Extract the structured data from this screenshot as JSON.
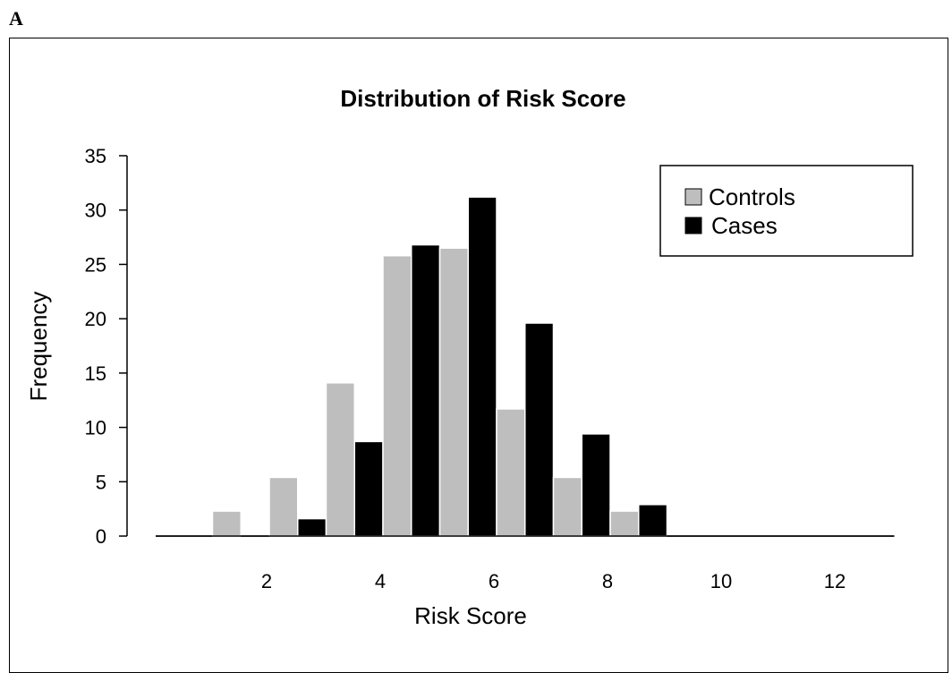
{
  "panel_label": "A",
  "chart_data": {
    "type": "bar",
    "title": "Distribution of Risk Score",
    "xlabel": "Risk Score",
    "ylabel": "Frequency",
    "categories": [
      1,
      2,
      3,
      4,
      5,
      6,
      7,
      8,
      9,
      10,
      11,
      12,
      13
    ],
    "x_ticks": [
      2,
      4,
      6,
      8,
      10,
      12
    ],
    "y_ticks": [
      0,
      5,
      10,
      15,
      20,
      25,
      30,
      35
    ],
    "ylim": [
      0,
      35
    ],
    "series": [
      {
        "name": "Controls",
        "color": "#bebebe",
        "values": [
          0,
          2.3,
          5.4,
          14.1,
          25.8,
          26.5,
          11.7,
          5.4,
          2.3,
          0,
          0,
          0,
          0
        ]
      },
      {
        "name": "Cases",
        "color": "#000000",
        "values": [
          0,
          0,
          1.6,
          8.7,
          26.8,
          31.2,
          19.6,
          9.4,
          2.9,
          0,
          0,
          0,
          0
        ]
      }
    ],
    "legend": {
      "position": "top-right"
    },
    "grid": false
  }
}
